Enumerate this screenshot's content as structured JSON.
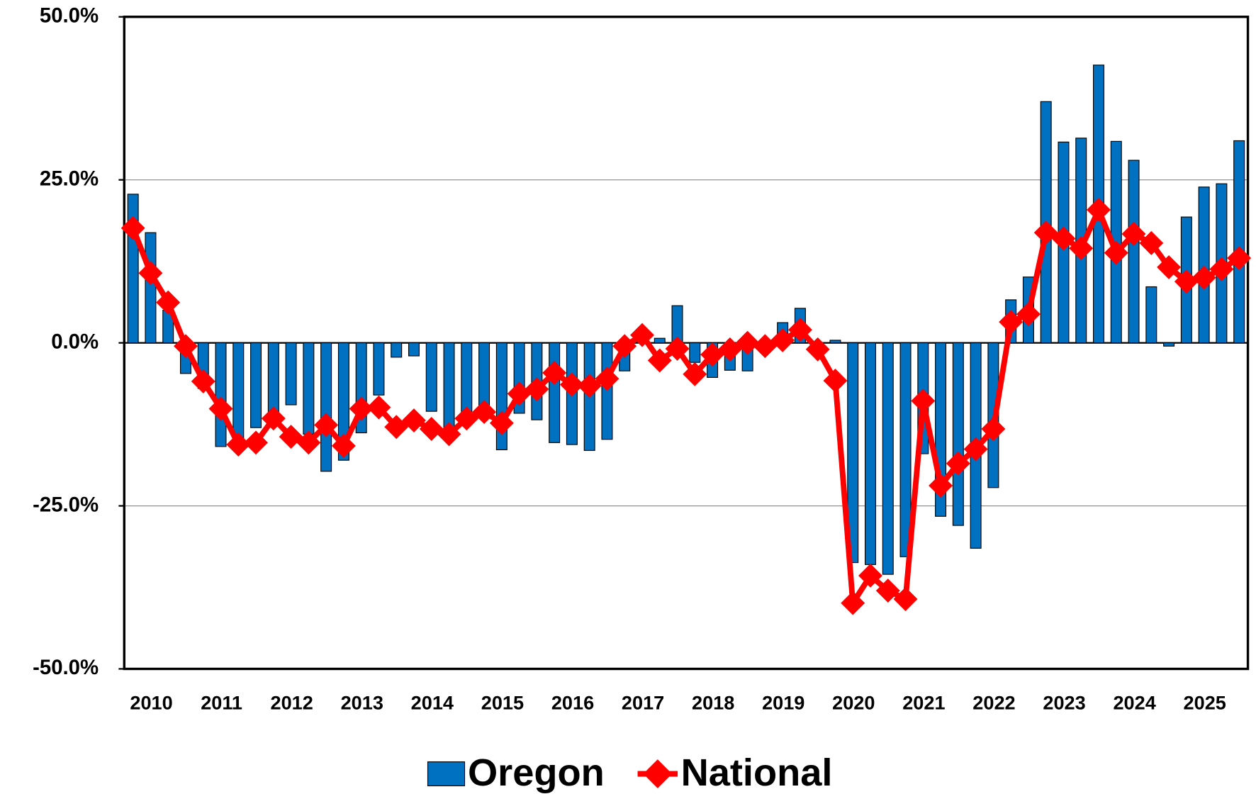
{
  "chart_data": {
    "type": "bar-line",
    "categories": [
      "2010",
      null,
      null,
      null,
      "2011",
      null,
      null,
      null,
      "2012",
      null,
      null,
      null,
      "2013",
      null,
      null,
      null,
      "2014",
      null,
      null,
      null,
      "2015",
      null,
      null,
      null,
      "2016",
      null,
      null,
      null,
      "2017",
      null,
      null,
      null,
      "2018",
      null,
      null,
      null,
      "2019",
      null,
      null,
      null,
      "2020",
      null,
      null,
      null,
      "2021",
      null,
      null,
      null,
      "2022",
      null,
      null,
      null,
      "2023",
      null,
      null,
      null,
      "2024",
      null,
      null,
      null,
      "2025",
      null,
      null,
      null
    ],
    "series": [
      {
        "name": "Oregon",
        "type": "bar",
        "color": "#0070c0",
        "values": [
          22.8,
          16.9,
          5,
          -4.7,
          -7,
          -15.9,
          -15,
          -13,
          -12,
          -9.5,
          -14,
          -19.7,
          -18,
          -13.8,
          -8,
          -2.2,
          -2,
          -10.5,
          -13,
          -11,
          -10,
          -16.4,
          -10.8,
          -11.8,
          -15.3,
          -15.6,
          -16.5,
          -14.8,
          -4.3,
          0.5,
          0.7,
          5.7,
          -3,
          -5.3,
          -4.2,
          -4.3,
          -1,
          3.1,
          5.3,
          -1,
          0.4,
          -33.7,
          -34,
          -35.5,
          -32.8,
          -17,
          -26.6,
          -28,
          -31.5,
          -22.2,
          6.6,
          10.1,
          37,
          30.8,
          31.4,
          42.6,
          30.9,
          28,
          8.6,
          -0.5,
          19.3,
          23.9,
          24.4,
          31
        ]
      },
      {
        "name": "National",
        "type": "line",
        "color": "#ff0000",
        "values": [
          17.6,
          10.7,
          6.2,
          -0.5,
          -5.9,
          -10.1,
          -15.6,
          -15.3,
          -11.6,
          -14.4,
          -15.3,
          -12.6,
          -15.8,
          -10.1,
          -9.9,
          -12.9,
          -11.9,
          -13.2,
          -14,
          -11.6,
          -10.6,
          -12.3,
          -7.8,
          -7.1,
          -4.6,
          -6.4,
          -6.6,
          -5.5,
          -0.5,
          1.2,
          -2.7,
          -0.9,
          -4.8,
          -1.8,
          -1,
          0,
          -0.5,
          0.4,
          2,
          -1,
          -5.8,
          -39.9,
          -35.7,
          -38,
          -39.3,
          -8.9,
          -21.9,
          -18.5,
          -16.3,
          -13.2,
          3.2,
          4.4,
          16.9,
          16,
          14.5,
          20.4,
          13.8,
          16.7,
          15.3,
          11.6,
          9.4,
          10,
          11.3,
          13
        ]
      }
    ],
    "ylim": [
      -50,
      50
    ],
    "yticks": [
      {
        "value": -50,
        "label": "-50.0%"
      },
      {
        "value": -25,
        "label": "-25.0%"
      },
      {
        "value": 0,
        "label": "0.0%"
      },
      {
        "value": 25,
        "label": "25.0%"
      },
      {
        "value": 50,
        "label": "50.0%"
      }
    ],
    "grid": true,
    "legend": "bottom"
  }
}
